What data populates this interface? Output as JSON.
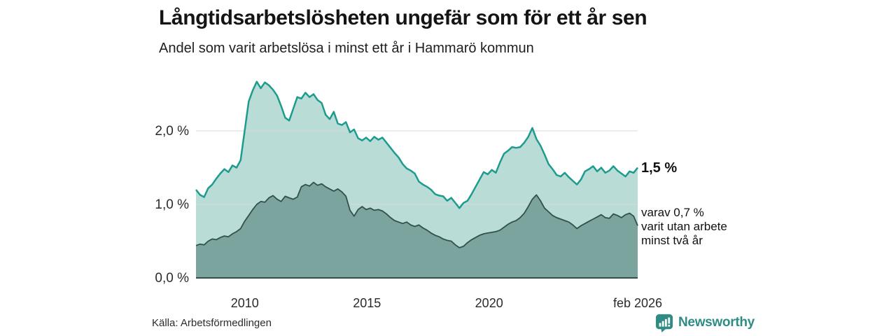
{
  "header": {
    "title": "Långtidsarbetslösheten ungefär som för ett år sen",
    "subtitle": "Andel som varit arbetslösa i minst ett år i Hammarö kommun"
  },
  "chart_data": {
    "type": "area",
    "title": "Långtidsarbetslösheten ungefär som för ett år sen",
    "subtitle": "Andel som varit arbetslösa i minst ett år i Hammarö kommun",
    "unit": "%",
    "x_start": 2008.0,
    "x_end": 2026.083,
    "ylim": [
      0,
      2.85
    ],
    "grid": true,
    "legend_position": "none",
    "grid_color": "#d9d9d9",
    "axis_color": "#33504d",
    "yticks": [
      {
        "value": 0,
        "label": "0,0 %"
      },
      {
        "value": 1,
        "label": "1,0 %"
      },
      {
        "value": 2,
        "label": "2,0 %"
      }
    ],
    "xticks": [
      {
        "value": 2010,
        "label": "2010"
      },
      {
        "value": 2015,
        "label": "2015"
      },
      {
        "value": 2020,
        "label": "2020"
      },
      {
        "value": 2026.083,
        "label": "feb 2026"
      }
    ],
    "series": [
      {
        "name": "Arbetslösa minst ett år",
        "color": "#1d9c8e",
        "fill": "#b9dcd6",
        "end_value_label": "1,5 %",
        "values": [
          1.2,
          1.13,
          1.1,
          1.22,
          1.27,
          1.35,
          1.42,
          1.48,
          1.44,
          1.53,
          1.5,
          1.6,
          2.0,
          2.4,
          2.55,
          2.67,
          2.58,
          2.66,
          2.62,
          2.56,
          2.48,
          2.34,
          2.18,
          2.14,
          2.3,
          2.46,
          2.44,
          2.52,
          2.46,
          2.5,
          2.42,
          2.38,
          2.22,
          2.16,
          2.26,
          2.1,
          2.08,
          2.12,
          1.98,
          2.02,
          1.9,
          1.87,
          1.91,
          1.86,
          1.92,
          1.88,
          1.91,
          1.84,
          1.77,
          1.7,
          1.64,
          1.55,
          1.49,
          1.46,
          1.42,
          1.31,
          1.27,
          1.24,
          1.2,
          1.14,
          1.12,
          1.11,
          1.05,
          1.09,
          1.02,
          0.95,
          1.02,
          1.05,
          1.14,
          1.24,
          1.34,
          1.44,
          1.41,
          1.47,
          1.43,
          1.57,
          1.69,
          1.73,
          1.78,
          1.77,
          1.78,
          1.84,
          1.92,
          2.04,
          1.89,
          1.8,
          1.68,
          1.55,
          1.48,
          1.4,
          1.38,
          1.43,
          1.37,
          1.32,
          1.27,
          1.34,
          1.45,
          1.48,
          1.52,
          1.45,
          1.5,
          1.43,
          1.46,
          1.52,
          1.46,
          1.42,
          1.38,
          1.45,
          1.43,
          1.5
        ]
      },
      {
        "name": "varav utan arbete minst två år",
        "color": "#33504d",
        "fill": "#7ba49e",
        "end_value_label": "0,7 %",
        "values": [
          0.44,
          0.46,
          0.45,
          0.5,
          0.53,
          0.52,
          0.55,
          0.57,
          0.56,
          0.6,
          0.63,
          0.67,
          0.77,
          0.85,
          0.93,
          1.0,
          1.04,
          1.03,
          1.09,
          1.12,
          1.07,
          1.04,
          1.11,
          1.09,
          1.07,
          1.1,
          1.24,
          1.27,
          1.25,
          1.3,
          1.26,
          1.28,
          1.24,
          1.21,
          1.18,
          1.21,
          1.17,
          1.11,
          0.92,
          0.84,
          0.93,
          0.97,
          0.93,
          0.95,
          0.92,
          0.93,
          0.91,
          0.87,
          0.82,
          0.78,
          0.76,
          0.74,
          0.76,
          0.72,
          0.7,
          0.72,
          0.68,
          0.65,
          0.61,
          0.58,
          0.56,
          0.53,
          0.51,
          0.5,
          0.45,
          0.41,
          0.43,
          0.48,
          0.52,
          0.55,
          0.58,
          0.6,
          0.61,
          0.62,
          0.63,
          0.65,
          0.69,
          0.73,
          0.76,
          0.78,
          0.82,
          0.88,
          0.97,
          1.07,
          1.13,
          1.05,
          0.95,
          0.9,
          0.85,
          0.82,
          0.8,
          0.78,
          0.76,
          0.72,
          0.67,
          0.71,
          0.74,
          0.77,
          0.8,
          0.83,
          0.86,
          0.82,
          0.81,
          0.87,
          0.85,
          0.82,
          0.86,
          0.88,
          0.84,
          0.71
        ]
      }
    ],
    "end_labels": {
      "primary": "1,5 %",
      "secondary_line1": "varav 0,7 %",
      "secondary_line2": "varit utan arbete",
      "secondary_line3": "minst två år"
    }
  },
  "footer": {
    "source": "Källa: Arbetsförmedlingen",
    "brand": "Newsworthy",
    "brand_color": "#2f8c85",
    "brand_icon": "bar-chart-speech-bubble-icon"
  }
}
